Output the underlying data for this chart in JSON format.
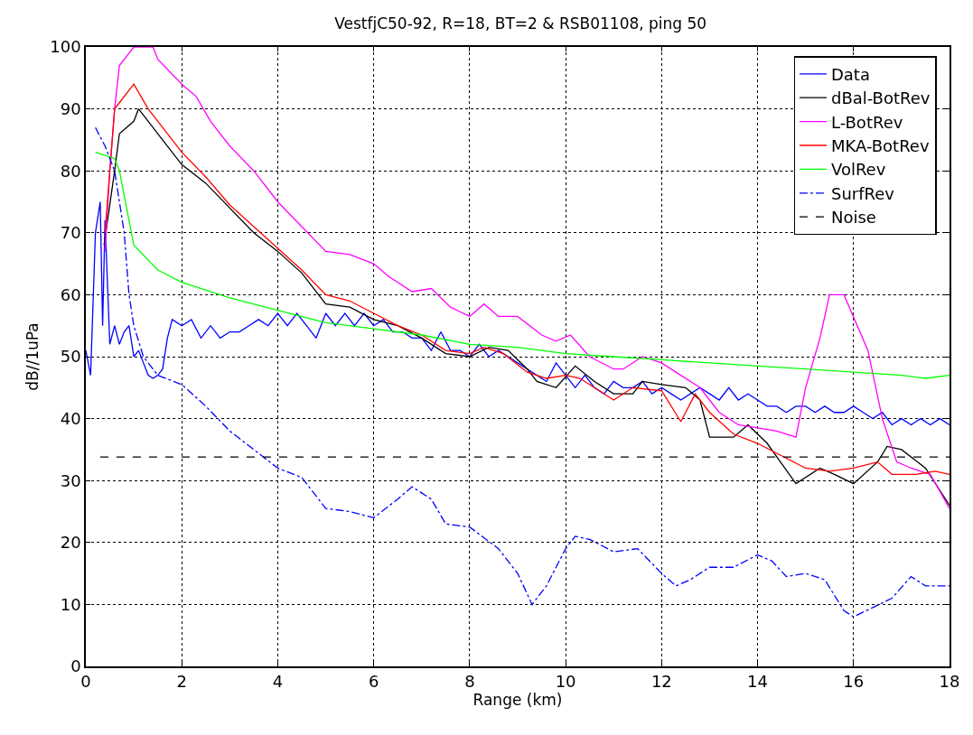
{
  "chart_data": {
    "type": "line",
    "title": "VestfjC50-92, R=18, BT=2 & RSB01108, ping 50",
    "xlabel": "Range (km)",
    "ylabel": "dB//1uPa",
    "xlim": [
      0,
      18
    ],
    "xticks": [
      0,
      2,
      4,
      6,
      8,
      10,
      12,
      14,
      16,
      18
    ],
    "ylim": [
      0,
      100
    ],
    "yticks": [
      0,
      10,
      20,
      30,
      40,
      50,
      60,
      70,
      80,
      90,
      100
    ],
    "grid": true,
    "legend": "top right",
    "marker": "none",
    "series": [
      {
        "name": "Data",
        "color": "#0000ff",
        "line_style": "solid",
        "x": [
          0,
          0.1,
          0.2,
          0.3,
          0.35,
          0.4,
          0.5,
          0.6,
          0.7,
          0.8,
          0.9,
          1.0,
          1.1,
          1.2,
          1.3,
          1.4,
          1.5,
          1.6,
          1.7,
          1.8,
          2.0,
          2.2,
          2.4,
          2.6,
          2.8,
          3.0,
          3.2,
          3.4,
          3.6,
          3.8,
          4.0,
          4.2,
          4.4,
          4.6,
          4.8,
          5.0,
          5.2,
          5.4,
          5.6,
          5.8,
          6.0,
          6.2,
          6.4,
          6.6,
          6.8,
          7.0,
          7.2,
          7.4,
          7.6,
          7.8,
          8.0,
          8.2,
          8.4,
          8.6,
          8.8,
          9.0,
          9.2,
          9.4,
          9.6,
          9.8,
          10.0,
          10.2,
          10.4,
          10.6,
          10.8,
          11.0,
          11.2,
          11.4,
          11.6,
          11.8,
          12.0,
          12.2,
          12.4,
          12.6,
          12.8,
          13.0,
          13.2,
          13.4,
          13.6,
          13.8,
          14.0,
          14.2,
          14.4,
          14.6,
          14.8,
          15.0,
          15.2,
          15.4,
          15.6,
          15.8,
          16.0,
          16.2,
          16.4,
          16.6,
          16.8,
          17.0,
          17.2,
          17.4,
          17.6,
          17.8,
          18.0
        ],
        "values": [
          51,
          47,
          70,
          75,
          55,
          72,
          52,
          55,
          52,
          54,
          55,
          50,
          51,
          49,
          47,
          46.5,
          47,
          48,
          53,
          56,
          55,
          56,
          53,
          55,
          53,
          54,
          54,
          55,
          56,
          55,
          57,
          55,
          57,
          55,
          53,
          57,
          55,
          57,
          55,
          57,
          55,
          56,
          54,
          54,
          53,
          53,
          51,
          54,
          51,
          51,
          50,
          52,
          50,
          51,
          50,
          49,
          48,
          47,
          46,
          49,
          47,
          45,
          47,
          45,
          44,
          46,
          45,
          45,
          46,
          44,
          45,
          44,
          43,
          44,
          45,
          44,
          43,
          45,
          43,
          44,
          43,
          42,
          42,
          41,
          42,
          42,
          41,
          42,
          41,
          41,
          42,
          41,
          40,
          41,
          39,
          40,
          39,
          40,
          39,
          40,
          39
        ]
      },
      {
        "name": "dBal-BotRev",
        "color": "#000000",
        "line_style": "solid",
        "x": [
          0.38,
          0.6,
          0.7,
          1.0,
          1.1,
          1.5,
          2,
          2.5,
          3,
          3.5,
          4,
          4.5,
          5,
          5.5,
          6,
          6.5,
          7,
          7.5,
          8,
          8.4,
          8.8,
          9.2,
          9.4,
          9.8,
          10.2,
          10.6,
          11,
          11.4,
          11.6,
          12,
          12.5,
          12.8,
          13,
          13.5,
          13.8,
          14.2,
          14.8,
          15.3,
          15.6,
          16,
          16.5,
          16.7,
          17,
          17.5,
          18
        ],
        "values": [
          68,
          80,
          86,
          88,
          90,
          86,
          81,
          78,
          74,
          70,
          67,
          63.5,
          58.5,
          58,
          56,
          55,
          53,
          50.5,
          50,
          51.5,
          51,
          48,
          46,
          45,
          48.5,
          46,
          44,
          44,
          46,
          45.5,
          45,
          43,
          37,
          37,
          39,
          36,
          29.5,
          32,
          31,
          29.5,
          33,
          35.5,
          35,
          32,
          26
        ]
      },
      {
        "name": "L-BotRev",
        "color": "#ff00ff",
        "line_style": "solid",
        "x": [
          0.4,
          0.5,
          0.6,
          0.7,
          0.9,
          1.0,
          1.4,
          1.5,
          2,
          2.3,
          2.6,
          3,
          3.5,
          4,
          4.5,
          5,
          5.5,
          6,
          6.3,
          6.8,
          7.2,
          7.6,
          8,
          8.3,
          8.6,
          9,
          9.5,
          9.8,
          10.1,
          10.5,
          11,
          11.2,
          11.6,
          12,
          12.4,
          12.8,
          13.2,
          13.6,
          14,
          14.4,
          14.8,
          15,
          15.3,
          15.5,
          15.8,
          16.3,
          16.6,
          16.9,
          17.2,
          17.6,
          18
        ],
        "values": [
          67,
          80,
          90,
          97,
          99,
          100,
          100,
          98,
          94,
          92,
          88,
          84,
          80,
          75,
          71,
          67,
          66.5,
          65,
          63,
          60.5,
          61,
          58,
          56.5,
          58.5,
          56.5,
          56.5,
          53.5,
          52.5,
          53.5,
          50,
          48,
          48,
          50,
          49,
          47,
          45,
          41,
          39,
          38.5,
          38,
          37,
          45,
          53,
          60,
          60,
          51,
          40,
          33,
          32,
          31,
          25.5
        ]
      },
      {
        "name": "MKA-BotRev",
        "color": "#ff0000",
        "line_style": "solid",
        "x": [
          0.4,
          0.5,
          0.6,
          0.7,
          1.0,
          1.3,
          1.6,
          2,
          2.5,
          3,
          3.5,
          4,
          4.5,
          5,
          5.5,
          6,
          6.5,
          7,
          7.5,
          8,
          8.3,
          8.7,
          9.2,
          9.6,
          10,
          10.3,
          11,
          11.4,
          12,
          12.4,
          12.7,
          13,
          13.5,
          14,
          14.5,
          15,
          15.5,
          16,
          16.5,
          16.8,
          17.3,
          17.7,
          18
        ],
        "values": [
          70,
          80,
          90,
          91,
          94,
          90,
          87,
          83,
          79,
          74.5,
          71,
          67.5,
          64,
          60,
          59,
          57,
          55,
          53.5,
          51,
          50.5,
          51.5,
          50.5,
          47.5,
          46.5,
          47,
          46.5,
          43,
          45,
          44.5,
          39.5,
          44,
          41,
          37.5,
          36,
          34,
          32,
          31.5,
          32,
          33,
          31,
          31,
          31.5,
          31
        ]
      },
      {
        "name": "VolRev",
        "color": "#00ff00",
        "line_style": "solid",
        "x": [
          0.2,
          0.6,
          0.7,
          0.9,
          1.0,
          1.5,
          2,
          3,
          4,
          5,
          6,
          7,
          8,
          9,
          10,
          11,
          12,
          13,
          14,
          15,
          16,
          17,
          17.5,
          18
        ],
        "values": [
          83,
          82,
          80,
          72,
          68,
          64,
          62,
          59.5,
          57.5,
          55.5,
          54.5,
          53.5,
          52,
          51.5,
          50.5,
          50,
          49.5,
          49,
          48.5,
          48,
          47.5,
          47,
          46.5,
          47
        ]
      },
      {
        "name": "SurfRev",
        "color": "#0000ff",
        "line_style": "dashdot",
        "x": [
          0.2,
          0.4,
          0.6,
          0.8,
          0.9,
          1.0,
          1.2,
          1.5,
          2,
          2.5,
          3,
          3.5,
          4,
          4.5,
          5,
          5.5,
          6,
          6.5,
          6.8,
          7.2,
          7.5,
          8,
          8.6,
          9,
          9.3,
          9.6,
          10,
          10.2,
          10.5,
          11,
          11.5,
          12,
          12.3,
          12.6,
          13,
          13.5,
          14,
          14.3,
          14.6,
          15,
          15.4,
          15.8,
          16,
          16.4,
          16.8,
          17.2,
          17.5,
          18
        ],
        "values": [
          87,
          84,
          80,
          70,
          60,
          55,
          50,
          47,
          45.5,
          42,
          38,
          35,
          32,
          30.5,
          25.5,
          25,
          24,
          27,
          29,
          27,
          23,
          22.5,
          19,
          15,
          10,
          13,
          19,
          21,
          20.5,
          18.5,
          19,
          15,
          13,
          14,
          16,
          16,
          18,
          17,
          14.5,
          15,
          14,
          9,
          8,
          9.5,
          11,
          14.5,
          13,
          13
        ]
      },
      {
        "name": "Noise",
        "color": "#000000",
        "line_style": "dashed",
        "x": [
          0.3,
          18
        ],
        "values": [
          33.8,
          33.8
        ]
      }
    ]
  }
}
